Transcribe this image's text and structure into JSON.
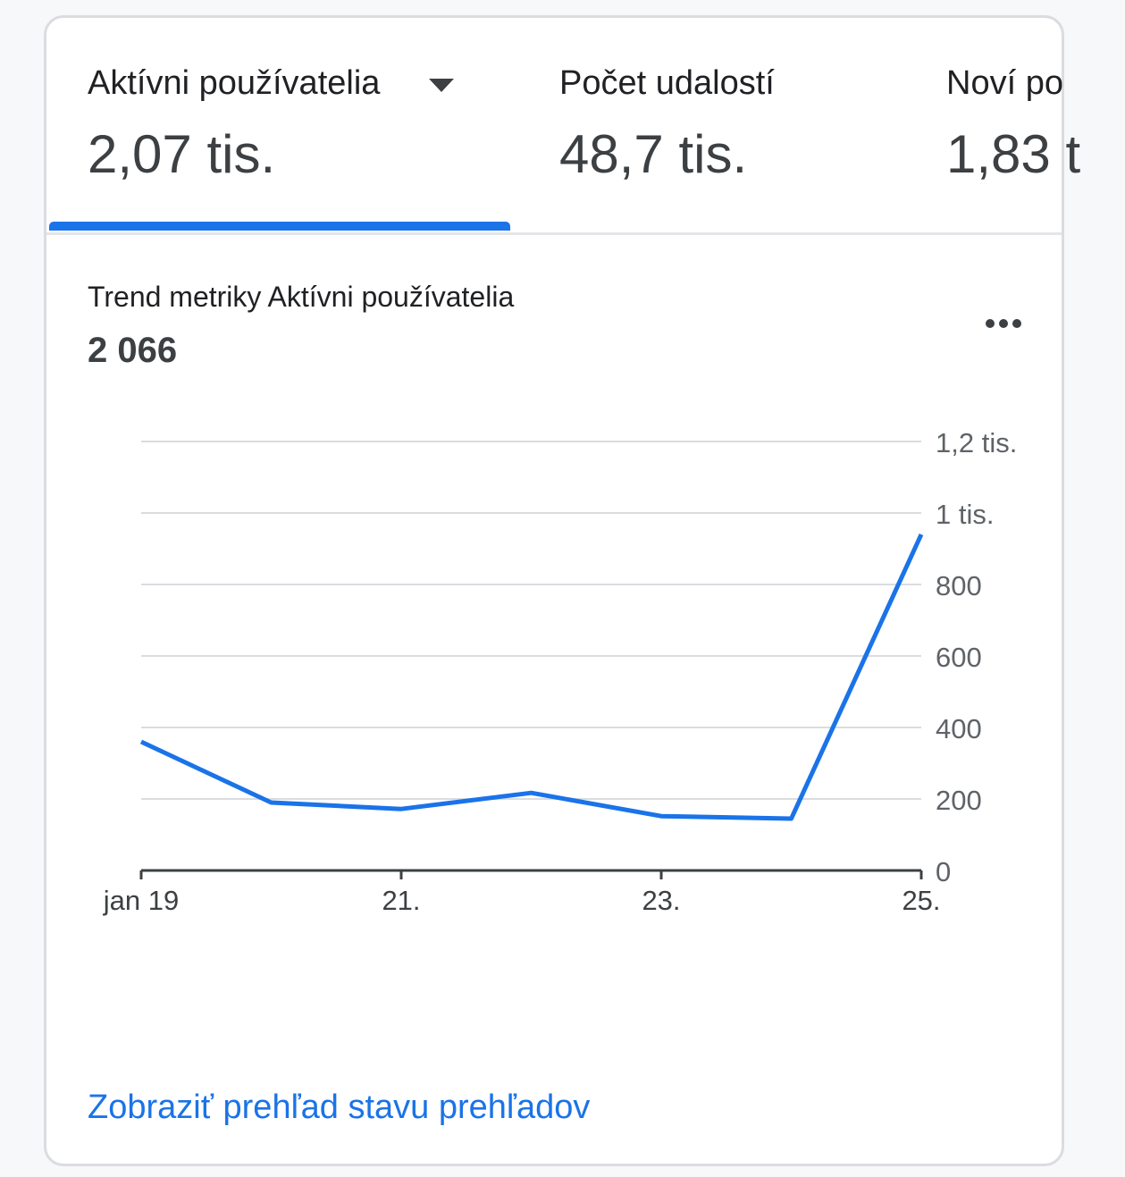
{
  "tabs": [
    {
      "label": "Aktívni používatelia",
      "value": "2,07 tis.",
      "selected": true
    },
    {
      "label": "Počet udalostí",
      "value": "48,7 tis.",
      "selected": false
    },
    {
      "label": "Noví po",
      "value": "1,83 t",
      "selected": false
    }
  ],
  "chart_header": {
    "title": "Trend metriky Aktívni používatelia",
    "total": "2 066"
  },
  "footer": {
    "link": "Zobraziť prehľad stavu prehľadov"
  },
  "colors": {
    "accent": "#1a73e8",
    "grid": "#dadce0",
    "axis": "#3c4043",
    "tick_text": "#5f6368"
  },
  "icons": {
    "dropdown": "caret-down-icon",
    "more": "more-horizontal-icon"
  },
  "chart_data": {
    "type": "line",
    "title": "Trend metriky Aktívni používatelia",
    "x": [
      "2024-01-19",
      "2024-01-20",
      "2024-01-21",
      "2024-01-22",
      "2024-01-23",
      "2024-01-24",
      "2024-01-25"
    ],
    "x_tick_labels": [
      {
        "index": 0,
        "label": "jan 19"
      },
      {
        "index": 2,
        "label": "21."
      },
      {
        "index": 4,
        "label": "23."
      },
      {
        "index": 6,
        "label": "25."
      }
    ],
    "series": [
      {
        "values": [
          360,
          190,
          172,
          217,
          152,
          145,
          940
        ]
      }
    ],
    "ylim": [
      0,
      1200
    ],
    "y_ticks": [
      {
        "value": 0,
        "label": "0"
      },
      {
        "value": 200,
        "label": "200"
      },
      {
        "value": 400,
        "label": "400"
      },
      {
        "value": 600,
        "label": "600"
      },
      {
        "value": 800,
        "label": "800"
      },
      {
        "value": 1000,
        "label": "1 tis."
      },
      {
        "value": 1200,
        "label": "1,2 tis."
      }
    ],
    "y_axis_side": "right",
    "grid": true,
    "legend": "none"
  }
}
